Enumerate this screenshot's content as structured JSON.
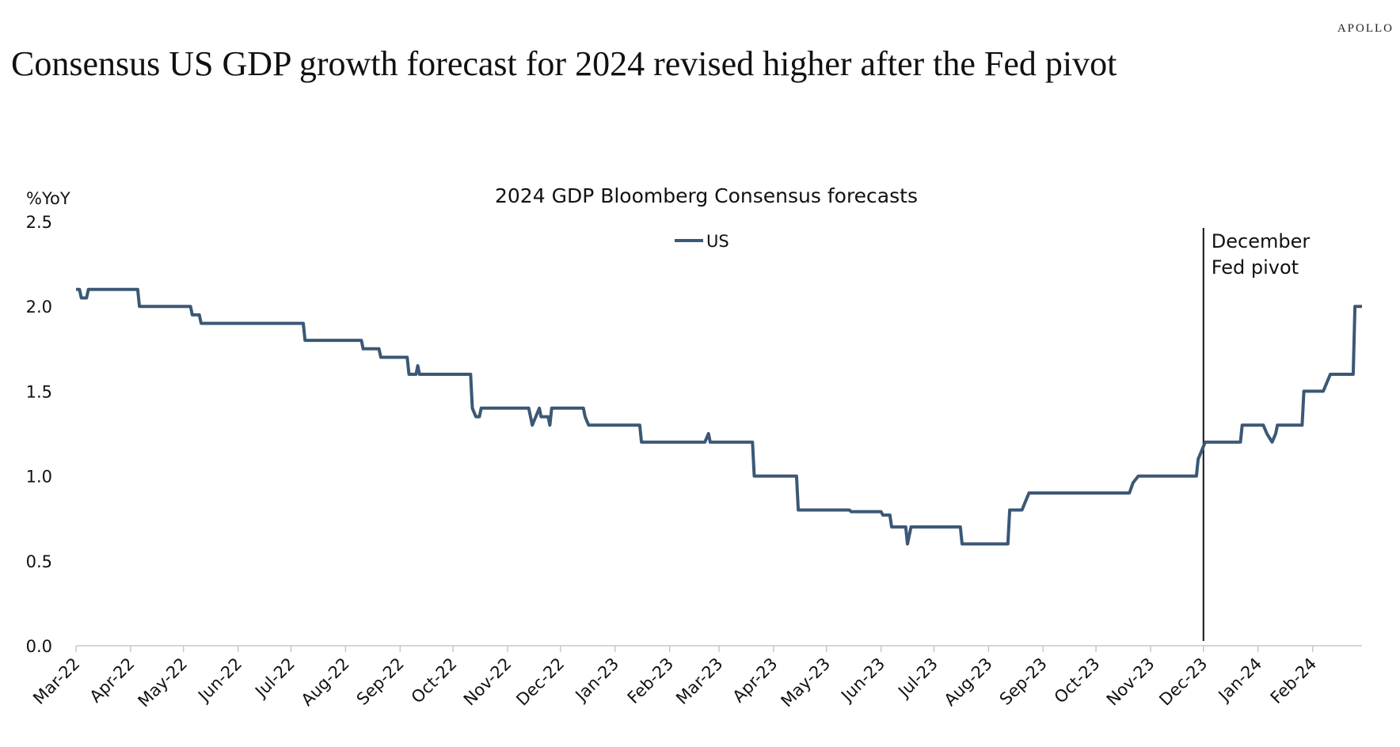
{
  "brand": "APOLLO",
  "headline": "Consensus US GDP growth forecast for 2024 revised higher after the Fed pivot",
  "chart_data": {
    "type": "line",
    "title": "2024 GDP Bloomberg Consensus forecasts",
    "ylabel": "%YoY",
    "ylim": [
      0,
      2.5
    ],
    "yticks": [
      "0.0",
      "0.5",
      "1.0",
      "1.5",
      "2.0",
      "2.5"
    ],
    "xlim": [
      "2022-03-01",
      "2024-02-29"
    ],
    "xticks": [
      "Mar-22",
      "Apr-22",
      "May-22",
      "Jun-22",
      "Jul-22",
      "Aug-22",
      "Sep-22",
      "Oct-22",
      "Nov-22",
      "Dec-22",
      "Jan-23",
      "Feb-23",
      "Mar-23",
      "Apr-23",
      "May-23",
      "Jun-23",
      "Jul-23",
      "Aug-23",
      "Sep-23",
      "Oct-23",
      "Nov-23",
      "Dec-23",
      "Jan-24",
      "Feb-24"
    ],
    "legend": "top-center",
    "grid": false,
    "annotation": {
      "date": "2023-12-01",
      "label_line1": "December",
      "label_line2": "Fed pivot"
    },
    "series": [
      {
        "name": "US",
        "color": "#3B5875",
        "points": [
          [
            "2022-03-01",
            2.1
          ],
          [
            "2022-03-03",
            2.1
          ],
          [
            "2022-03-04",
            2.05
          ],
          [
            "2022-03-07",
            2.05
          ],
          [
            "2022-03-08",
            2.1
          ],
          [
            "2022-04-05",
            2.1
          ],
          [
            "2022-04-06",
            2.0
          ],
          [
            "2022-05-05",
            2.0
          ],
          [
            "2022-05-06",
            1.95
          ],
          [
            "2022-05-10",
            1.95
          ],
          [
            "2022-05-11",
            1.9
          ],
          [
            "2022-07-08",
            1.9
          ],
          [
            "2022-07-09",
            1.8
          ],
          [
            "2022-08-10",
            1.8
          ],
          [
            "2022-08-11",
            1.75
          ],
          [
            "2022-08-20",
            1.75
          ],
          [
            "2022-08-21",
            1.7
          ],
          [
            "2022-09-05",
            1.7
          ],
          [
            "2022-09-06",
            1.6
          ],
          [
            "2022-09-10",
            1.6
          ],
          [
            "2022-09-11",
            1.65
          ],
          [
            "2022-09-12",
            1.6
          ],
          [
            "2022-10-11",
            1.6
          ],
          [
            "2022-10-12",
            1.4
          ],
          [
            "2022-10-14",
            1.35
          ],
          [
            "2022-10-16",
            1.35
          ],
          [
            "2022-10-17",
            1.4
          ],
          [
            "2022-11-13",
            1.4
          ],
          [
            "2022-11-14",
            1.35
          ],
          [
            "2022-11-15",
            1.3
          ],
          [
            "2022-11-17",
            1.35
          ],
          [
            "2022-11-19",
            1.4
          ],
          [
            "2022-11-20",
            1.35
          ],
          [
            "2022-11-24",
            1.35
          ],
          [
            "2022-11-25",
            1.3
          ],
          [
            "2022-11-26",
            1.4
          ],
          [
            "2022-12-14",
            1.4
          ],
          [
            "2022-12-15",
            1.35
          ],
          [
            "2022-12-17",
            1.3
          ],
          [
            "2023-01-15",
            1.3
          ],
          [
            "2023-01-16",
            1.2
          ],
          [
            "2023-02-21",
            1.2
          ],
          [
            "2023-02-23",
            1.25
          ],
          [
            "2023-02-24",
            1.2
          ],
          [
            "2023-03-20",
            1.2
          ],
          [
            "2023-03-21",
            1.0
          ],
          [
            "2023-04-14",
            1.0
          ],
          [
            "2023-04-15",
            0.8
          ],
          [
            "2023-05-14",
            0.8
          ],
          [
            "2023-05-15",
            0.79
          ],
          [
            "2023-06-01",
            0.79
          ],
          [
            "2023-06-02",
            0.77
          ],
          [
            "2023-06-06",
            0.77
          ],
          [
            "2023-06-07",
            0.7
          ],
          [
            "2023-06-15",
            0.7
          ],
          [
            "2023-06-16",
            0.6
          ],
          [
            "2023-06-18",
            0.7
          ],
          [
            "2023-07-16",
            0.7
          ],
          [
            "2023-07-17",
            0.6
          ],
          [
            "2023-08-12",
            0.6
          ],
          [
            "2023-08-13",
            0.8
          ],
          [
            "2023-08-20",
            0.8
          ],
          [
            "2023-08-24",
            0.9
          ],
          [
            "2023-10-20",
            0.9
          ],
          [
            "2023-10-22",
            0.96
          ],
          [
            "2023-10-25",
            1.0
          ],
          [
            "2023-11-27",
            1.0
          ],
          [
            "2023-11-28",
            1.1
          ],
          [
            "2023-11-30",
            1.15
          ],
          [
            "2023-12-02",
            1.2
          ],
          [
            "2023-12-22",
            1.2
          ],
          [
            "2023-12-23",
            1.3
          ],
          [
            "2024-01-04",
            1.3
          ],
          [
            "2024-01-06",
            1.25
          ],
          [
            "2024-01-09",
            1.2
          ],
          [
            "2024-01-11",
            1.25
          ],
          [
            "2024-01-12",
            1.3
          ],
          [
            "2024-01-26",
            1.3
          ],
          [
            "2024-01-27",
            1.5
          ],
          [
            "2024-02-07",
            1.5
          ],
          [
            "2024-02-09",
            1.55
          ],
          [
            "2024-02-11",
            1.6
          ],
          [
            "2024-02-24",
            1.6
          ],
          [
            "2024-02-25",
            2.0
          ],
          [
            "2024-02-29",
            2.0
          ]
        ]
      }
    ]
  }
}
